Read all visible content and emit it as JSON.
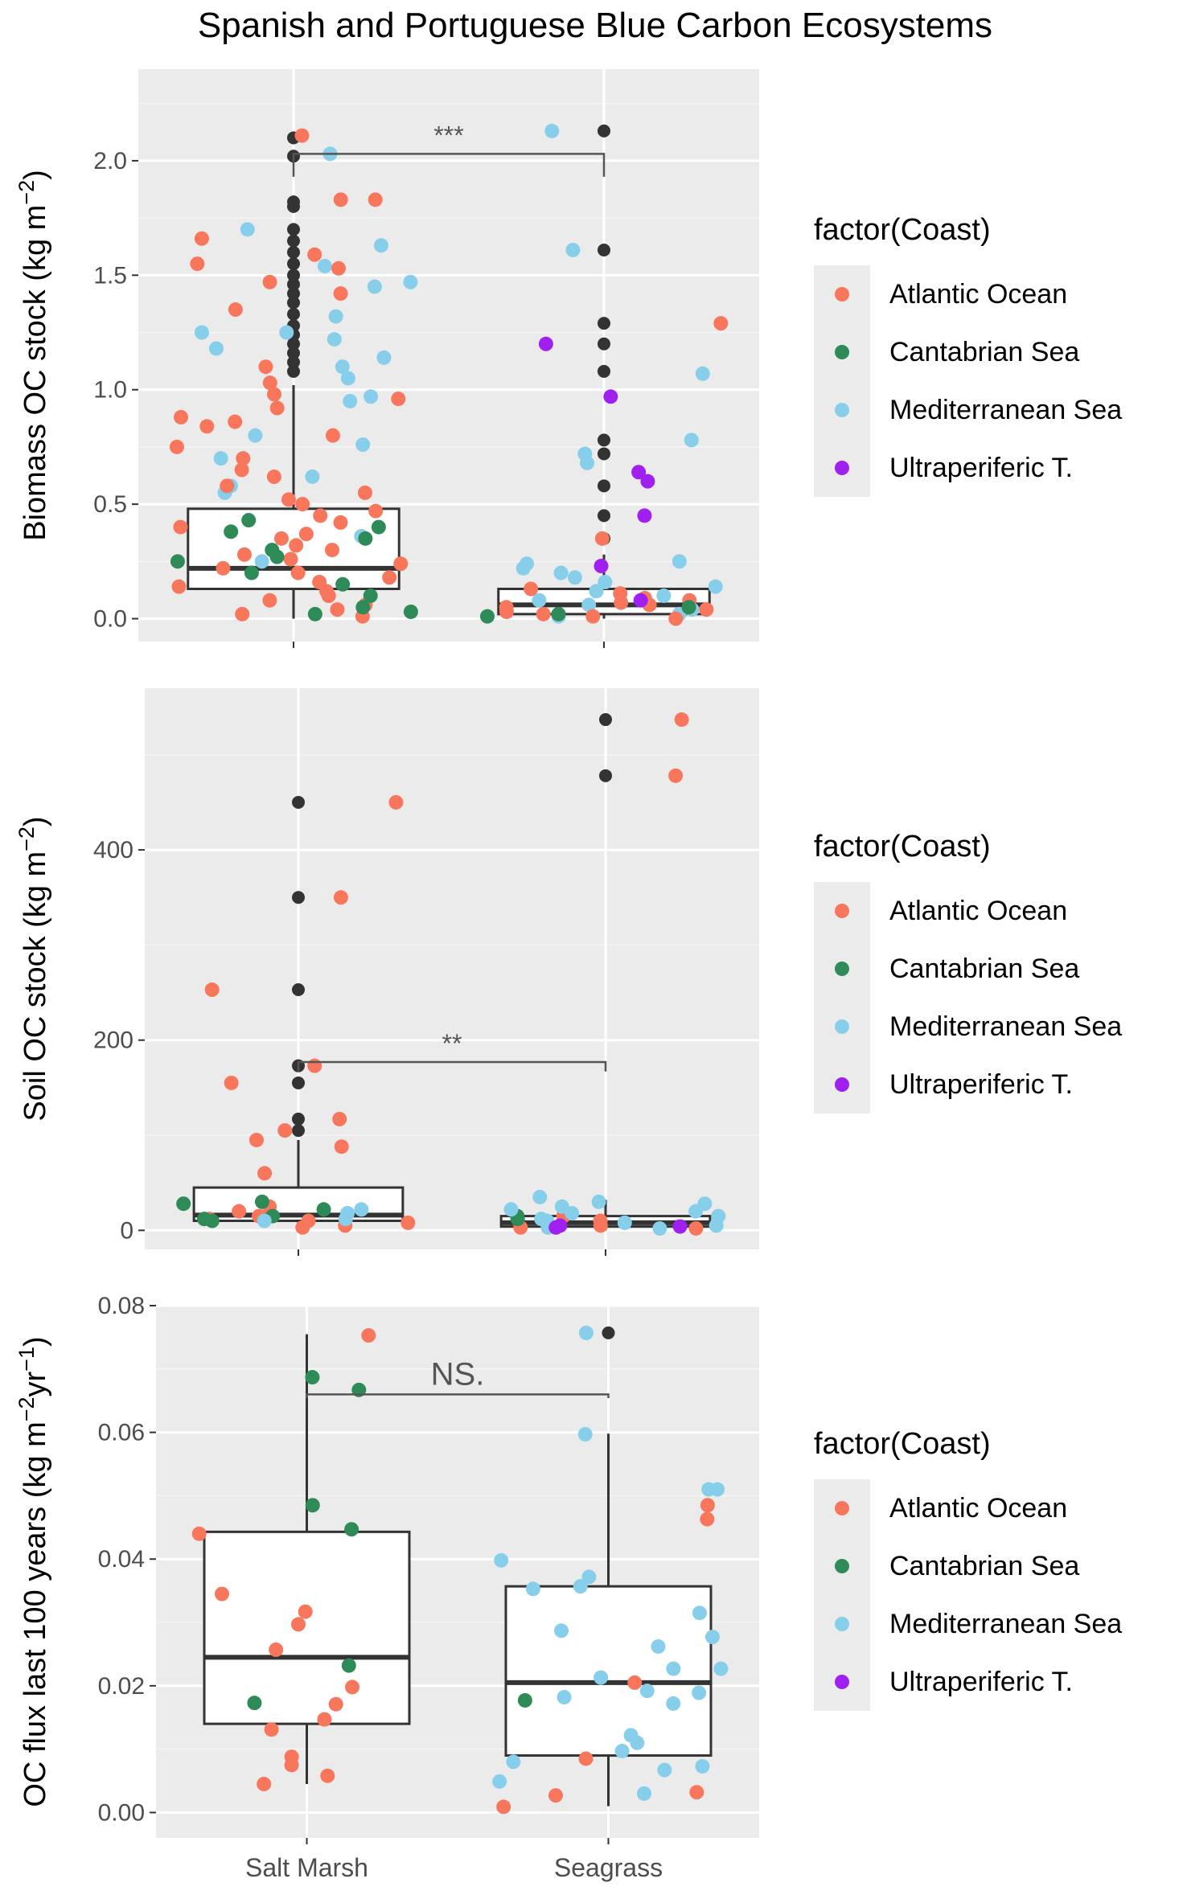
{
  "chart_data": {
    "type": "box+jitter",
    "title": "Spanish and Portuguese Blue Carbon Ecosystems",
    "categories": [
      "Salt Marsh",
      "Seagrass"
    ],
    "legend": {
      "title": "factor(Coast)",
      "placement": "right",
      "entries": [
        {
          "name": "Atlantic Ocean",
          "color": "#F8765C"
        },
        {
          "name": "Cantabrian Sea",
          "color": "#2E8B57"
        },
        {
          "name": "Mediterranean Sea",
          "color": "#87CEEB"
        },
        {
          "name": "Ultraperiferic T.",
          "color": "#A020F0"
        }
      ]
    },
    "outlier_color": "#333333",
    "panels": [
      {
        "ylabel_main": "Biomass OC stock (kg m",
        "ylabel_sup": "−2",
        "ylabel_tail": ")",
        "ylim": [
          -0.1,
          2.4
        ],
        "yticks": [
          0,
          0.5,
          1,
          1.5,
          2
        ],
        "yticklabels": [
          "0.0",
          "0.5",
          "1.0",
          "1.5",
          "2.0"
        ],
        "significance": {
          "label": "***",
          "y": 2.03,
          "drop": 0.1
        },
        "boxes": [
          {
            "category": "Salt Marsh",
            "q1": 0.13,
            "median": 0.22,
            "q3": 0.48,
            "whisker_low": 0.0,
            "whisker_high": 1.02
          },
          {
            "category": "Seagrass",
            "q1": 0.02,
            "median": 0.06,
            "q3": 0.13,
            "whisker_low": 0.0,
            "whisker_high": 0.28
          }
        ],
        "outliers": [
          {
            "category": "Salt Marsh",
            "values": [
              2.1,
              2.02,
              1.82,
              1.8,
              1.7,
              1.65,
              1.6,
              1.55,
              1.5,
              1.46,
              1.42,
              1.38,
              1.33,
              1.28,
              1.24,
              1.2,
              1.16,
              1.12,
              1.08
            ]
          },
          {
            "category": "Seagrass",
            "values": [
              2.13,
              1.61,
              1.29,
              1.2,
              1.08,
              0.78,
              0.72,
              0.58,
              0.45,
              0.35
            ]
          }
        ],
        "points": [
          {
            "coast": "Mediterranean Sea",
            "category": "Salt Marsh",
            "values": [
              2.03,
              1.7,
              1.54,
              1.47,
              1.32,
              1.22,
              1.18,
              1.14,
              1.1,
              0.97,
              0.95,
              0.8,
              0.76,
              0.7,
              0.62,
              0.58,
              0.55,
              0.36,
              1.63,
              1.45,
              1.25,
              1.25,
              1.05,
              0.25
            ]
          },
          {
            "coast": "Mediterranean Sea",
            "category": "Seagrass",
            "values": [
              2.13,
              1.61,
              1.07,
              0.78,
              0.72,
              0.68,
              0.25,
              0.24,
              0.22,
              0.2,
              0.18,
              0.16,
              0.14,
              0.12,
              0.1,
              0.08,
              0.06,
              0.04,
              0.02,
              0.01
            ]
          },
          {
            "coast": "Atlantic Ocean",
            "category": "Salt Marsh",
            "values": [
              2.11,
              1.83,
              1.83,
              1.66,
              1.59,
              1.55,
              1.53,
              1.47,
              1.42,
              1.35,
              1.1,
              1.03,
              0.98,
              0.96,
              0.92,
              0.88,
              0.86,
              0.84,
              0.8,
              0.75,
              0.7,
              0.65,
              0.62,
              0.58,
              0.55,
              0.52,
              0.5,
              0.47,
              0.45,
              0.42,
              0.4,
              0.37,
              0.35,
              0.32,
              0.3,
              0.28,
              0.26,
              0.24,
              0.22,
              0.2,
              0.18,
              0.16,
              0.14,
              0.12,
              0.1,
              0.08,
              0.06,
              0.04,
              0.02,
              0.01
            ]
          },
          {
            "coast": "Atlantic Ocean",
            "category": "Seagrass",
            "values": [
              1.29,
              0.35,
              0.13,
              0.11,
              0.09,
              0.08,
              0.07,
              0.06,
              0.05,
              0.04,
              0.03,
              0.02,
              0.01,
              0.0
            ]
          },
          {
            "coast": "Cantabrian Sea",
            "category": "Salt Marsh",
            "values": [
              0.43,
              0.4,
              0.38,
              0.35,
              0.3,
              0.27,
              0.25,
              0.2,
              0.15,
              0.1,
              0.05,
              0.03,
              0.02
            ]
          },
          {
            "coast": "Cantabrian Sea",
            "category": "Seagrass",
            "values": [
              0.05,
              0.02,
              0.01
            ]
          },
          {
            "coast": "Ultraperiferic T.",
            "category": "Seagrass",
            "values": [
              1.2,
              0.97,
              0.64,
              0.6,
              0.45,
              0.23,
              0.08
            ]
          }
        ]
      },
      {
        "ylabel_main": "Soil OC stock (kg m",
        "ylabel_sup": "−2",
        "ylabel_tail": ")",
        "ylim": [
          -20,
          570
        ],
        "yticks": [
          0,
          200,
          400
        ],
        "yticklabels": [
          "0",
          "200",
          "400"
        ],
        "significance": {
          "label": "**",
          "y": 177,
          "drop": 10
        },
        "boxes": [
          {
            "category": "Salt Marsh",
            "q1": 10,
            "median": 16,
            "q3": 45,
            "whisker_low": 0,
            "whisker_high": 95
          },
          {
            "category": "Seagrass",
            "q1": 4,
            "median": 8,
            "q3": 15,
            "whisker_low": 0,
            "whisker_high": 32
          }
        ],
        "outliers": [
          {
            "category": "Salt Marsh",
            "values": [
              450,
              350,
              253,
              173,
              155,
              117,
              105
            ]
          },
          {
            "category": "Seagrass",
            "values": [
              537,
              478
            ]
          }
        ],
        "points": [
          {
            "coast": "Atlantic Ocean",
            "category": "Salt Marsh",
            "values": [
              450,
              350,
              253,
              173,
              155,
              117,
              105,
              95,
              88,
              60,
              25,
              20,
              15,
              12,
              10,
              8,
              5,
              3
            ]
          },
          {
            "coast": "Atlantic Ocean",
            "category": "Seagrass",
            "values": [
              537,
              478,
              15,
              10,
              5,
              3,
              2
            ]
          },
          {
            "coast": "Cantabrian Sea",
            "category": "Salt Marsh",
            "values": [
              30,
              28,
              22,
              15,
              12,
              10
            ]
          },
          {
            "coast": "Cantabrian Sea",
            "category": "Seagrass",
            "values": [
              15,
              12
            ]
          },
          {
            "coast": "Mediterranean Sea",
            "category": "Salt Marsh",
            "values": [
              22,
              18,
              12,
              10
            ]
          },
          {
            "coast": "Mediterranean Sea",
            "category": "Seagrass",
            "values": [
              35,
              30,
              28,
              25,
              22,
              20,
              18,
              15,
              12,
              10,
              8,
              5,
              3,
              2
            ]
          },
          {
            "coast": "Ultraperiferic T.",
            "category": "Seagrass",
            "values": [
              5,
              4,
              3
            ]
          }
        ]
      },
      {
        "ylabel_main": "OC flux last 100 years (kg m",
        "ylabel_sup": "−2",
        "ylabel_mid": "yr",
        "ylabel_sup2": "−1",
        "ylabel_tail": ")",
        "ylim": [
          -0.004,
          0.08
        ],
        "yticks": [
          0,
          0.02,
          0.04,
          0.06,
          0.08
        ],
        "yticklabels": [
          "0.00",
          "0.02",
          "0.04",
          "0.06",
          "0.08"
        ],
        "significance": {
          "label": "NS.",
          "y": 0.066,
          "drop": 0.0006
        },
        "boxes": [
          {
            "category": "Salt Marsh",
            "q1": 0.014,
            "median": 0.0245,
            "q3": 0.0443,
            "whisker_low": 0.0045,
            "whisker_high": 0.0755
          },
          {
            "category": "Seagrass",
            "q1": 0.009,
            "median": 0.0205,
            "q3": 0.0357,
            "whisker_low": 0.001,
            "whisker_high": 0.0598
          }
        ],
        "outliers": [
          {
            "category": "Seagrass",
            "values": [
              0.0757
            ]
          }
        ],
        "points": [
          {
            "coast": "Cantabrian Sea",
            "category": "Salt Marsh",
            "values": [
              0.0687,
              0.0667,
              0.0485,
              0.0447,
              0.0232,
              0.0173
            ]
          },
          {
            "coast": "Cantabrian Sea",
            "category": "Seagrass",
            "values": [
              0.0177
            ]
          },
          {
            "coast": "Atlantic Ocean",
            "category": "Salt Marsh",
            "values": [
              0.0753,
              0.044,
              0.0345,
              0.0317,
              0.0297,
              0.0257,
              0.0198,
              0.0171,
              0.0147,
              0.0131,
              0.0088,
              0.0075,
              0.0058,
              0.0045
            ]
          },
          {
            "coast": "Atlantic Ocean",
            "category": "Seagrass",
            "values": [
              0.0485,
              0.0463,
              0.0205,
              0.0085,
              0.0032,
              0.0027,
              0.0009
            ]
          },
          {
            "coast": "Mediterranean Sea",
            "category": "Seagrass",
            "values": [
              0.0757,
              0.0597,
              0.051,
              0.051,
              0.0398,
              0.0372,
              0.0357,
              0.0353,
              0.0315,
              0.0287,
              0.0277,
              0.0262,
              0.0227,
              0.0227,
              0.0213,
              0.0192,
              0.0189,
              0.0182,
              0.0172,
              0.0122,
              0.011,
              0.0097,
              0.008,
              0.0073,
              0.0067,
              0.0049,
              0.003
            ]
          }
        ]
      }
    ]
  }
}
